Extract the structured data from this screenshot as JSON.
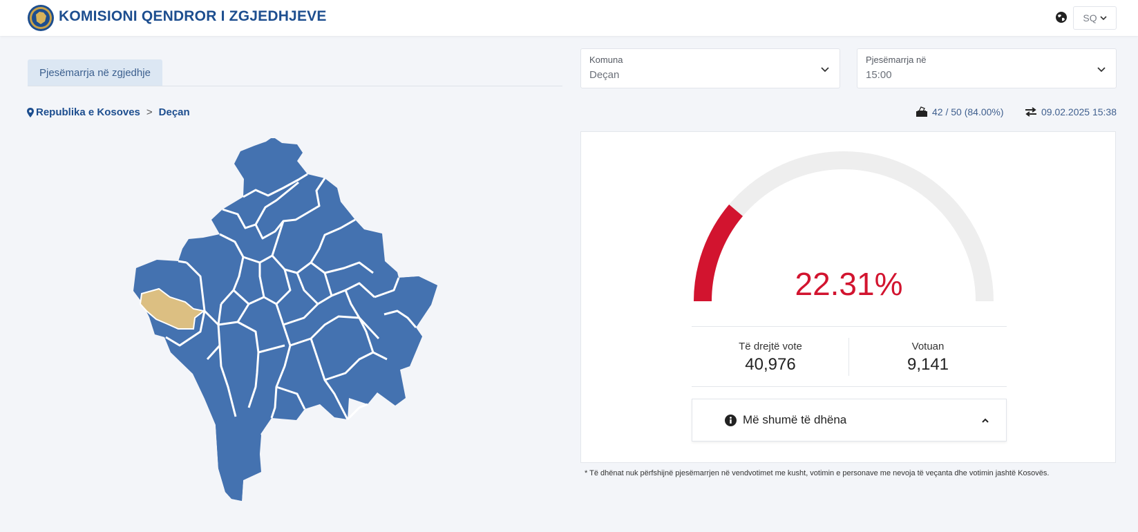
{
  "header": {
    "title": "KOMISIONI QENDROR I ZGJEDHJEVE",
    "language": "SQ",
    "brand_color": "#1d4e8f"
  },
  "tabs": [
    {
      "label": "Pjesëmarrja në zgjedhje",
      "active": true
    }
  ],
  "filters": {
    "komuna": {
      "label": "Komuna",
      "value": "Deçan"
    },
    "pjesemarrja": {
      "label": "Pjesëmarrja në",
      "value": "15:00"
    }
  },
  "breadcrumb": {
    "items": [
      "Republika e Kosoves",
      "Deçan"
    ],
    "separator": ">"
  },
  "stats": {
    "stations": "42 / 50 (84.00%)",
    "updated": "09.02.2025 15:38"
  },
  "map": {
    "base_color": "#4472b0",
    "selected_color": "#dcbf82",
    "border_color": "#ffffff",
    "selected_region": "Deçan"
  },
  "turnout": {
    "percent_text": "22.31%",
    "percent_value": 22.31,
    "gauge_color": "#d2142f",
    "track_color": "#eeeeee",
    "eligible_label": "Të drejtë vote",
    "eligible_value": "40,976",
    "voted_label": "Votuan",
    "voted_value": "9,141",
    "more_label": "Më shumë të dhëna"
  },
  "footnote": "* Të dhënat nuk përfshijnë pjesëmarrjen në vendvotimet me kusht, votimin e personave me nevoja të veçanta dhe votimin jashtë Kosovës."
}
